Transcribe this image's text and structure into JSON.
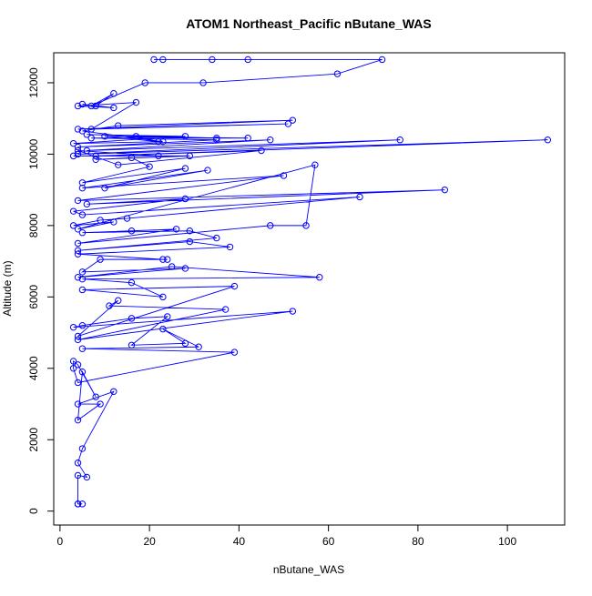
{
  "chart_data": {
    "type": "scatter",
    "title": "ATOM1 Northeast_Pacific nButane_WAS",
    "x_label": "nButane_WAS",
    "y_label": "Altitude (m)",
    "xlim": [
      -1.4,
      112.8
    ],
    "ylim": [
      -390,
      12840
    ],
    "xticks": [
      0,
      20,
      40,
      60,
      80,
      100
    ],
    "yticks": [
      0,
      2000,
      4000,
      6000,
      8000,
      10000,
      12000
    ],
    "grid": false,
    "lines": true,
    "series": [
      {
        "color": "#0000ff",
        "x": [
          4,
          5,
          4,
          4,
          6,
          4,
          5,
          12,
          4,
          9,
          4,
          5,
          8,
          4,
          3,
          3,
          4,
          39,
          5,
          31,
          23,
          28,
          16,
          24,
          16,
          5,
          3,
          52,
          4,
          37,
          11,
          13,
          4,
          39,
          5,
          23,
          16,
          5,
          58,
          25,
          4,
          28,
          5,
          9,
          24,
          23,
          4,
          38,
          29,
          4,
          35,
          29,
          5,
          16,
          26,
          4,
          47,
          55,
          57,
          4,
          12,
          3,
          9,
          15,
          67,
          5,
          3,
          28,
          6,
          86,
          4,
          50,
          5,
          33,
          10,
          28,
          5,
          20,
          16,
          8,
          29,
          3,
          22,
          4,
          13,
          45,
          8,
          109,
          4,
          76,
          6,
          47,
          4,
          35,
          7,
          42,
          10,
          22,
          17,
          35,
          6,
          28,
          3,
          23,
          5,
          13,
          52,
          4,
          51,
          7,
          17,
          4,
          12,
          5,
          8,
          12,
          7,
          19,
          32,
          62,
          72,
          21,
          42,
          23,
          34
        ],
        "values": [
          200,
          200,
          200,
          1000,
          950,
          1350,
          1750,
          3350,
          3000,
          3000,
          2550,
          3900,
          3200,
          4100,
          4200,
          4000,
          3600,
          4450,
          4550,
          4600,
          5100,
          4700,
          4650,
          5450,
          5400,
          5200,
          5150,
          5600,
          4800,
          5650,
          5750,
          5900,
          4900,
          6300,
          6200,
          6000,
          6400,
          6500,
          6550,
          6850,
          6550,
          6800,
          6700,
          7050,
          7050,
          7050,
          7200,
          7400,
          7550,
          7300,
          7650,
          7850,
          7800,
          7850,
          7900,
          7500,
          8000,
          8000,
          9700,
          7900,
          8100,
          8000,
          8150,
          8200,
          8800,
          8300,
          8400,
          8750,
          8600,
          9000,
          8700,
          9400,
          9050,
          9550,
          9050,
          9600,
          9200,
          9650,
          9900,
          9850,
          9950,
          9950,
          9950,
          10100,
          9700,
          10100,
          9950,
          10400,
          10000,
          10400,
          10100,
          10400,
          10200,
          10400,
          10450,
          10450,
          10500,
          10350,
          10500,
          10450,
          10550,
          10500,
          10300,
          10350,
          10650,
          10800,
          10950,
          10700,
          10850,
          10700,
          11450,
          11350,
          11300,
          11400,
          11350,
          11700,
          11350,
          12000,
          12000,
          12250,
          12650,
          12650,
          12650,
          12650,
          12650
        ]
      }
    ]
  }
}
